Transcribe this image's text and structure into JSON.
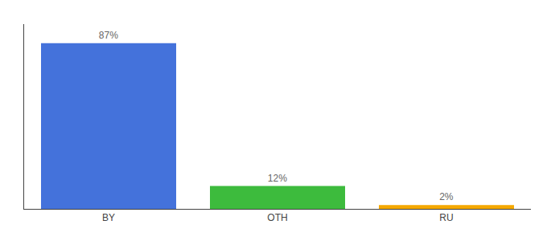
{
  "chart_data": {
    "type": "bar",
    "categories": [
      "BY",
      "OTH",
      "RU"
    ],
    "values": [
      87,
      12,
      2
    ],
    "value_labels": [
      "87%",
      "12%",
      "2%"
    ],
    "colors": [
      "#4472db",
      "#3dbb3d",
      "#f5a800"
    ],
    "ylim": [
      0,
      97
    ],
    "data_labels": true,
    "tick_labels": "x",
    "grid": false
  }
}
